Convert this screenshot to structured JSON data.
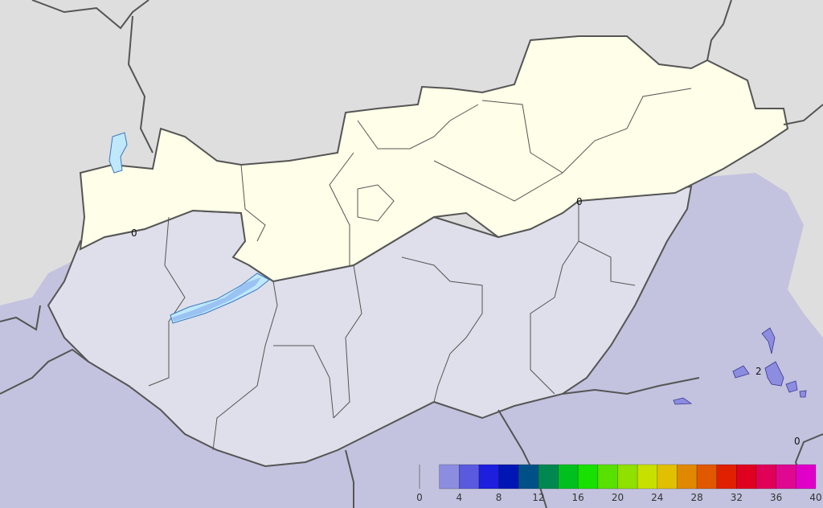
{
  "map": {
    "contour_labels": [
      {
        "text": "0"
      },
      {
        "text": "0"
      },
      {
        "text": "2"
      },
      {
        "text": "0"
      }
    ],
    "colors": {
      "outside": "#dedede",
      "zero_zone_north": "#fffee8",
      "zero_zone_hungary_south": "#dedfea",
      "level_0_2_outside": "#c3c3df",
      "lake": "#bfe8fb",
      "border": "#555555"
    }
  },
  "legend": {
    "tick_labels": [
      "0",
      "4",
      "8",
      "12",
      "16",
      "20",
      "24",
      "28",
      "32",
      "36",
      "40"
    ],
    "min": 0,
    "max": 40,
    "step": 2,
    "bins": [
      "none",
      "#8c8ce0",
      "#5a5adf",
      "#1e1edf",
      "#0016b4",
      "#005088",
      "#008850",
      "#00c020",
      "#18e000",
      "#58e000",
      "#90e000",
      "#c8e000",
      "#e0c000",
      "#e08800",
      "#e05800",
      "#e02000",
      "#e00020",
      "#e00058",
      "#e00890",
      "#e000c8"
    ]
  }
}
